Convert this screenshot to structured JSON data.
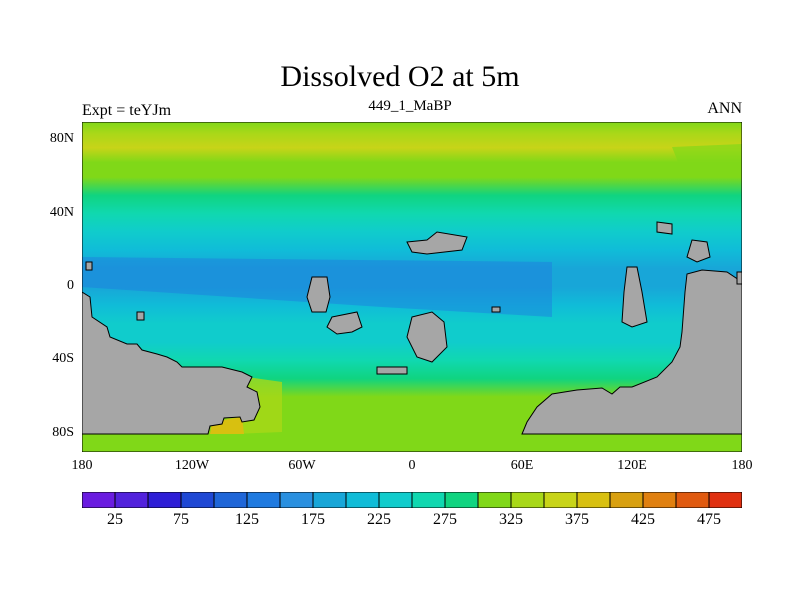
{
  "title": "Dissolved O2 at 5m",
  "subtitle": "449_1_MaBP",
  "left_label": "Expt = teYJm",
  "right_label": "ANN",
  "y_ticks": [
    "80N",
    "40N",
    "0",
    "40S",
    "80S"
  ],
  "x_ticks": [
    "180",
    "120W",
    "60W",
    "0",
    "60E",
    "120E",
    "180"
  ],
  "colorbar": {
    "labels": [
      "25",
      "75",
      "125",
      "175",
      "225",
      "275",
      "325",
      "375",
      "425",
      "475"
    ],
    "colors": [
      "#7a17e6",
      "#6a1ce0",
      "#5222dc",
      "#2e1ed6",
      "#1f48d4",
      "#1f66d8",
      "#1f7ae0",
      "#2a90e0",
      "#18a6d8",
      "#10bcd8",
      "#10cccc",
      "#10d8b0",
      "#10d480",
      "#80d818",
      "#a8d818",
      "#c8d418",
      "#d8c010",
      "#d8a010",
      "#e08010",
      "#e05a10",
      "#e03010",
      "#e01010"
    ],
    "levels": [
      0,
      25,
      50,
      75,
      100,
      125,
      150,
      175,
      200,
      225,
      250,
      275,
      300,
      325,
      350,
      375,
      400,
      425,
      450,
      475,
      500
    ]
  },
  "map": {
    "land_color": "#a6a6a6",
    "bands": [
      {
        "lat": 90,
        "value": 305
      },
      {
        "lat": 84,
        "value": 340
      },
      {
        "lat": 76,
        "value": 350
      },
      {
        "lat": 68,
        "value": 320
      },
      {
        "lat": 60,
        "value": 300
      },
      {
        "lat": 50,
        "value": 280
      },
      {
        "lat": 40,
        "value": 255
      },
      {
        "lat": 30,
        "value": 230
      },
      {
        "lat": 20,
        "value": 200
      },
      {
        "lat": 10,
        "value": 185
      },
      {
        "lat": 0,
        "value": 185
      },
      {
        "lat": -10,
        "value": 200
      },
      {
        "lat": -20,
        "value": 225
      },
      {
        "lat": -30,
        "value": 245
      },
      {
        "lat": -40,
        "value": 260
      },
      {
        "lat": -50,
        "value": 290
      },
      {
        "lat": -60,
        "value": 310
      },
      {
        "lat": -70,
        "value": 320
      },
      {
        "lat": -80,
        "value": 320
      },
      {
        "lat": -90,
        "value": 320
      }
    ]
  }
}
